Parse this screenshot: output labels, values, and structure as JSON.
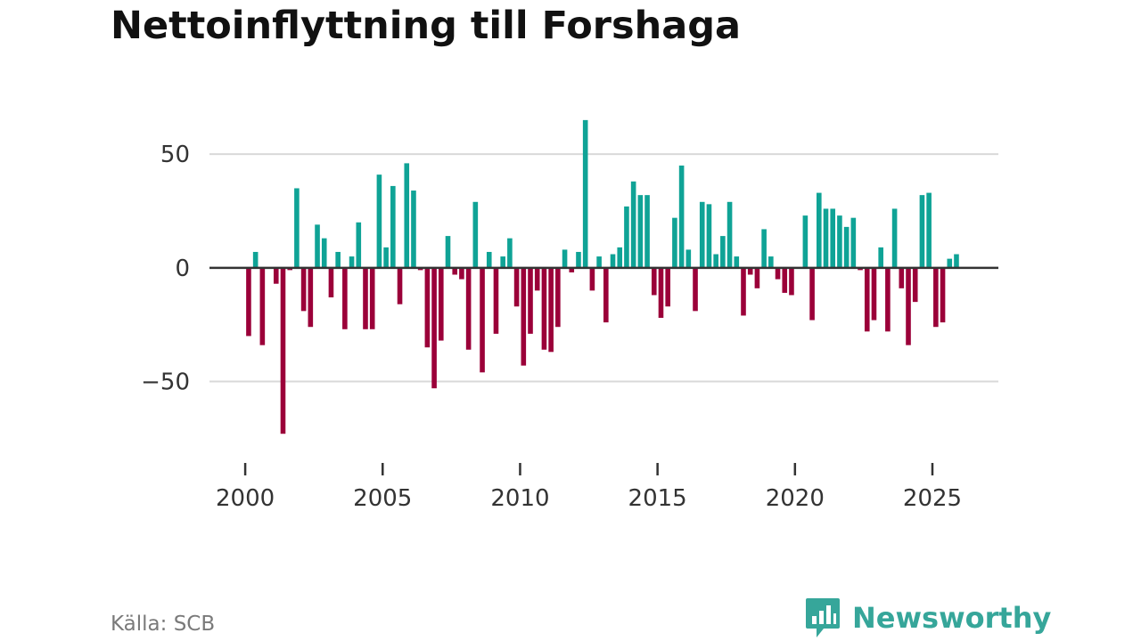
{
  "chart_data": {
    "type": "bar",
    "title": "Nettoinflyttning till Forshaga",
    "xlabel": "",
    "ylabel": "",
    "x_unit": "quarter",
    "start": [
      2000,
      1
    ],
    "ylim": [
      -78,
      72
    ],
    "xlim": [
      1998.7,
      2027.4
    ],
    "yticks": [
      50,
      0,
      -50
    ],
    "ytick_labels": [
      "50",
      "0",
      "−50"
    ],
    "xticks": [
      2000,
      2005,
      2010,
      2015,
      2020,
      2025
    ],
    "xtick_labels": [
      "2000",
      "2005",
      "2010",
      "2015",
      "2020",
      "2025"
    ],
    "positive_color": "#0fa396",
    "negative_color": "#9b0039",
    "values": [
      -30,
      7,
      -34,
      0,
      -7,
      -73,
      -1,
      35,
      -19,
      -26,
      19,
      13,
      -13,
      7,
      -27,
      5,
      20,
      -27,
      -27,
      41,
      9,
      36,
      -16,
      46,
      34,
      -1,
      -35,
      -53,
      -32,
      14,
      -3,
      -5,
      -36,
      29,
      -46,
      7,
      -29,
      5,
      13,
      -17,
      -43,
      -29,
      -10,
      -36,
      -37,
      -26,
      8,
      -2,
      7,
      65,
      -10,
      5,
      -24,
      6,
      9,
      27,
      38,
      32,
      32,
      -12,
      -22,
      -17,
      22,
      45,
      8,
      -19,
      29,
      28,
      6,
      14,
      29,
      5,
      -21,
      -3,
      -9,
      17,
      5,
      -5,
      -11,
      -12,
      0,
      23,
      -23,
      33,
      26,
      26,
      23,
      18,
      22,
      -1,
      -28,
      -23,
      9,
      -28,
      26,
      -9,
      -34,
      -15,
      32,
      33,
      -26,
      -24,
      4,
      6
    ]
  },
  "footer": {
    "source": "Källa: SCB",
    "brand": "Newsworthy"
  }
}
